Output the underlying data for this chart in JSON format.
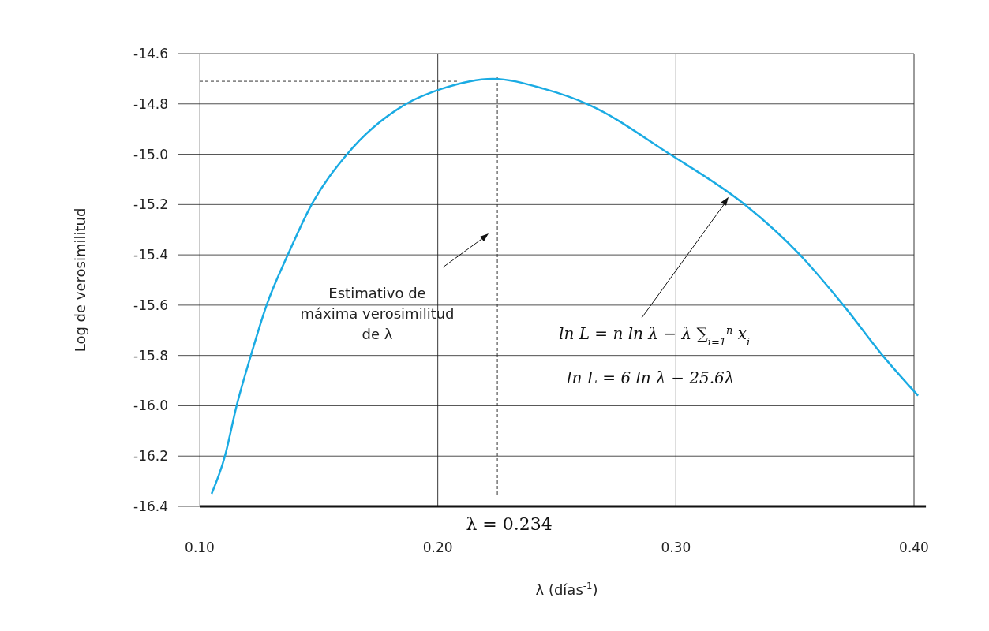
{
  "chart_data": {
    "type": "line",
    "xlabel": "λ (días$^{-1}$)",
    "ylabel": "Log de verosimilitud",
    "x": [
      0.105,
      0.1106,
      0.1155,
      0.1215,
      0.1281,
      0.137,
      0.147,
      0.1619,
      0.1867,
      0.2016,
      0.2231,
      0.2446,
      0.2627,
      0.2975,
      0.3289,
      0.3521,
      0.3703,
      0.3868,
      0.4017
    ],
    "series": [
      {
        "color": "#1aabe3",
        "values": [
          -16.35,
          -16.2,
          -16.0,
          -15.8,
          -15.6,
          -15.4,
          -15.2,
          -15.0,
          -14.8,
          -14.74,
          -14.7,
          -14.74,
          -14.8,
          -15.0,
          -15.2,
          -15.4,
          -15.6,
          -15.8,
          -15.96
        ]
      }
    ],
    "xlim": [
      0.1,
      0.405
    ],
    "xticks": [
      {
        "value": 0.1,
        "label": "0.10"
      },
      {
        "value": 0.2,
        "label": "0.20"
      },
      {
        "value": 0.3,
        "label": "0.30"
      },
      {
        "value": 0.4,
        "label": "0.40"
      }
    ],
    "ylim": [
      -16.4,
      -14.6
    ],
    "yticks": [
      -16.4,
      -16.2,
      {
        "value": -16,
        "label": "-16.0"
      },
      -15.8,
      -15.6,
      -15.4,
      -15.2,
      {
        "value": -15,
        "label": "-15.0"
      },
      -14.8,
      -14.6
    ],
    "grid": true,
    "line_style": "solid",
    "marker": "none",
    "ref_lines": [
      {
        "axis": "x",
        "value": 0.225,
        "line_style": "dashed",
        "color": "#333333"
      },
      {
        "axis": "y",
        "value": -14.71,
        "line_style": "dashed",
        "color": "#333333"
      }
    ],
    "annotations": [
      "Estimativo de máxima verosimilitud de λ",
      {
        "text": "ln L = n ln λ − λ ∑$_{i=1}$$^{n}$ x$_{i}$",
        "x": 0.3221,
        "y": -15.17
      },
      "ln L = 6 ln λ − 25.6λ",
      "λ = 0.234"
    ]
  }
}
